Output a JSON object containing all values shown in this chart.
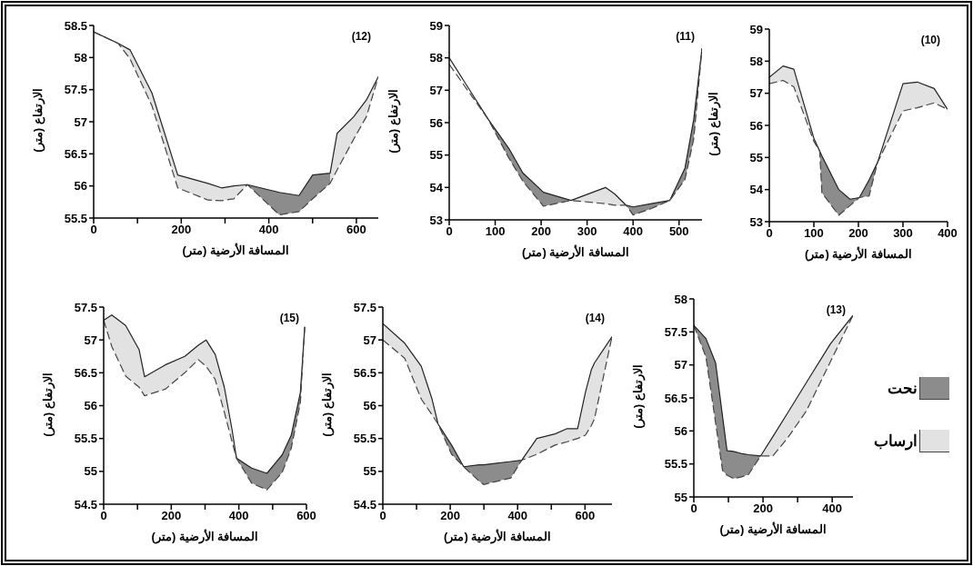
{
  "chart_data": [
    {
      "type": "line",
      "title": "(12)",
      "xlabel": "المسافة الأرضية (متر)",
      "ylabel": "الارتفاع (متر)",
      "marker": "none",
      "xlim": [
        0,
        650
      ],
      "xticks": [
        0,
        {
          "value": 100,
          "label": null
        },
        200,
        {
          "value": 300,
          "label": null
        },
        400,
        {
          "value": 500,
          "label": null
        },
        600
      ],
      "ylim": [
        55.5,
        58.5
      ],
      "yticks": [
        55.5,
        56,
        56.5,
        57,
        57.5,
        58,
        58.5
      ],
      "x": [
        0,
        56,
        83,
        133,
        192,
        261,
        292,
        320,
        351,
        424,
        469,
        500,
        540,
        556,
        594,
        623,
        650
      ],
      "series": [
        {
          "type": "line",
          "color": "#222222",
          "line_style": "solid",
          "values": [
            58.4,
            58.22,
            58.12,
            57.45,
            56.17,
            56.04,
            55.97,
            56.0,
            56.02,
            55.9,
            55.85,
            56.17,
            56.2,
            56.82,
            57.08,
            57.34,
            57.7
          ]
        },
        {
          "type": "line",
          "color": "#444444",
          "line_style": "dashed",
          "values": [
            58.4,
            58.22,
            57.98,
            57.25,
            55.97,
            55.78,
            55.77,
            55.8,
            56.02,
            55.55,
            55.6,
            55.8,
            56.04,
            56.25,
            56.73,
            57.08,
            57.7
          ]
        },
        {
          "type": "area",
          "color": "#8c8c8c",
          "values": [
            null,
            null,
            null,
            null,
            null,
            null,
            null,
            null,
            56.02,
            55.9,
            55.85,
            56.17,
            56.2,
            null,
            null,
            null,
            null
          ]
        },
        {
          "type": "area",
          "color": "#e2e2e2",
          "values": [
            58.4,
            58.22,
            58.12,
            57.45,
            56.17,
            56.04,
            55.97,
            56.0,
            56.02,
            null,
            null,
            null,
            56.2,
            56.82,
            57.08,
            57.34,
            57.7
          ]
        }
      ]
    },
    {
      "type": "line",
      "title": "(11)",
      "xlabel": "المسافة الأرضية (متر)",
      "ylabel": "الارتفاع (متر)",
      "marker": "none",
      "xlim": [
        0,
        550
      ],
      "xticks": [
        0,
        100,
        200,
        300,
        400,
        500
      ],
      "ylim": [
        53,
        59
      ],
      "yticks": [
        53,
        54,
        55,
        56,
        57,
        58,
        59
      ],
      "x": [
        0,
        85,
        130,
        160,
        205,
        265,
        340,
        360,
        385,
        400,
        440,
        480,
        513,
        532,
        550
      ],
      "series": [
        {
          "type": "line",
          "color": "#222222",
          "line_style": "solid",
          "values": [
            58.0,
            56.1,
            55.2,
            54.45,
            53.85,
            53.6,
            54.0,
            53.8,
            53.45,
            53.4,
            53.5,
            53.6,
            54.6,
            56.1,
            58.3
          ]
        },
        {
          "type": "line",
          "color": "#444444",
          "line_style": "dashed",
          "values": [
            57.8,
            56.1,
            54.9,
            54.2,
            53.42,
            53.6,
            53.5,
            53.45,
            53.45,
            53.15,
            53.35,
            53.6,
            54.25,
            55.5,
            58.3
          ]
        },
        {
          "type": "area",
          "color": "#8c8c8c",
          "values": [
            null,
            56.1,
            55.2,
            54.45,
            53.85,
            53.6,
            null,
            null,
            53.45,
            53.4,
            53.5,
            53.6,
            54.6,
            56.1,
            58.3
          ]
        },
        {
          "type": "area",
          "color": "#e2e2e2",
          "values": [
            null,
            null,
            null,
            null,
            null,
            53.6,
            54.0,
            53.8,
            53.45,
            null,
            null,
            null,
            null,
            null,
            null
          ]
        }
      ]
    },
    {
      "type": "line",
      "title": "(10)",
      "xlabel": "المسافة الأرضية (متر)",
      "ylabel": "الارتفاع (متر)",
      "marker": "none",
      "xlim": [
        0,
        400
      ],
      "xticks": [
        0,
        100,
        200,
        300,
        400
      ],
      "ylim": [
        53,
        59
      ],
      "yticks": [
        53,
        54,
        55,
        56,
        57,
        58,
        59
      ],
      "x": [
        0,
        31,
        55,
        100,
        113,
        118,
        156,
        181,
        202,
        224,
        243,
        300,
        332,
        370,
        400
      ],
      "series": [
        {
          "type": "line",
          "color": "#222222",
          "line_style": "solid",
          "values": [
            57.5,
            57.85,
            57.75,
            55.6,
            55.2,
            55.05,
            54.0,
            53.7,
            53.75,
            54.3,
            54.85,
            57.3,
            57.35,
            57.15,
            56.5
          ]
        },
        {
          "type": "line",
          "color": "#444444",
          "line_style": "dashed",
          "values": [
            57.3,
            57.4,
            57.2,
            55.5,
            55.2,
            53.9,
            53.2,
            53.5,
            53.75,
            53.8,
            54.85,
            56.45,
            56.55,
            56.7,
            56.5
          ]
        },
        {
          "type": "area",
          "color": "#8c8c8c",
          "values": [
            null,
            null,
            null,
            null,
            55.2,
            55.05,
            54.0,
            53.7,
            53.75,
            54.3,
            54.85,
            null,
            null,
            null,
            null
          ]
        },
        {
          "type": "area",
          "color": "#e2e2e2",
          "values": [
            57.5,
            57.85,
            57.75,
            55.6,
            55.2,
            null,
            null,
            null,
            null,
            null,
            54.85,
            57.3,
            57.35,
            57.15,
            56.5
          ]
        }
      ]
    },
    {
      "type": "line",
      "title": "(15)",
      "xlabel": "المسافة الأرضية (متر)",
      "ylabel": "الارتفاع (متر)",
      "marker": "none",
      "xlim": [
        0,
        600
      ],
      "xticks": [
        0,
        {
          "value": 100,
          "label": null
        },
        200,
        {
          "value": 300,
          "label": null
        },
        400,
        {
          "value": 500,
          "label": null
        },
        600
      ],
      "ylim": [
        54.5,
        57.5
      ],
      "yticks": [
        54.5,
        55,
        55.5,
        56,
        56.5,
        57,
        57.5
      ],
      "x": [
        0,
        24,
        65,
        105,
        121,
        182,
        240,
        280,
        303,
        330,
        357,
        380,
        393,
        438,
        483,
        528,
        555,
        582,
        595
      ],
      "series": [
        {
          "type": "line",
          "color": "#222222",
          "line_style": "solid",
          "values": [
            57.3,
            57.38,
            57.22,
            56.85,
            56.44,
            56.62,
            56.75,
            56.92,
            57.0,
            56.78,
            56.28,
            55.63,
            55.2,
            55.05,
            54.97,
            55.25,
            55.55,
            56.2,
            57.2
          ]
        },
        {
          "type": "line",
          "color": "#444444",
          "line_style": "dashed",
          "values": [
            57.3,
            56.9,
            56.45,
            56.28,
            56.15,
            56.25,
            56.5,
            56.7,
            56.6,
            56.4,
            55.9,
            55.45,
            55.2,
            54.82,
            54.72,
            54.98,
            55.35,
            56.05,
            57.2
          ]
        },
        {
          "type": "area",
          "color": "#8c8c8c",
          "values": [
            null,
            null,
            null,
            null,
            null,
            null,
            null,
            null,
            null,
            null,
            null,
            null,
            55.2,
            55.05,
            54.97,
            55.25,
            55.55,
            56.2,
            57.2
          ]
        },
        {
          "type": "area",
          "color": "#e2e2e2",
          "values": [
            57.3,
            57.38,
            57.22,
            56.85,
            56.44,
            56.62,
            56.75,
            56.92,
            57.0,
            56.78,
            56.28,
            55.63,
            55.2,
            null,
            null,
            null,
            null,
            null,
            null
          ]
        }
      ]
    },
    {
      "type": "line",
      "title": "(14)",
      "xlabel": "المسافة الأرضية (متر)",
      "ylabel": "الارتفاع (متر)",
      "marker": "none",
      "xlim": [
        0,
        680
      ],
      "xticks": [
        0,
        {
          "value": 100,
          "label": null
        },
        200,
        {
          "value": 300,
          "label": null
        },
        400,
        {
          "value": 500,
          "label": null
        },
        600
      ],
      "ylim": [
        54.5,
        57.5
      ],
      "yticks": [
        54.5,
        55,
        55.5,
        56,
        56.5,
        57,
        57.5
      ],
      "x": [
        0,
        65,
        114,
        146,
        164,
        204,
        240,
        286,
        299,
        380,
        412,
        457,
        511,
        547,
        578,
        601,
        619,
        628,
        680
      ],
      "series": [
        {
          "type": "line",
          "color": "#222222",
          "line_style": "solid",
          "values": [
            57.25,
            56.95,
            56.6,
            56.1,
            55.72,
            55.4,
            55.07,
            55.1,
            55.1,
            55.15,
            55.17,
            55.5,
            55.57,
            55.65,
            55.65,
            56.2,
            56.55,
            56.65,
            57.05
          ]
        },
        {
          "type": "line",
          "color": "#444444",
          "line_style": "dashed",
          "values": [
            57.0,
            56.72,
            56.1,
            55.86,
            55.72,
            55.26,
            55.07,
            54.85,
            54.8,
            54.9,
            55.17,
            55.26,
            55.4,
            55.45,
            55.5,
            55.55,
            55.7,
            55.8,
            57.05
          ]
        },
        {
          "type": "area",
          "color": "#8c8c8c",
          "values": [
            null,
            null,
            null,
            null,
            55.72,
            55.4,
            55.07,
            55.1,
            55.1,
            55.15,
            55.17,
            null,
            null,
            null,
            null,
            null,
            null,
            null,
            null
          ]
        },
        {
          "type": "area",
          "color": "#e2e2e2",
          "values": [
            57.25,
            56.95,
            56.6,
            56.1,
            55.72,
            null,
            null,
            null,
            null,
            null,
            55.17,
            55.5,
            55.57,
            55.65,
            55.65,
            56.2,
            56.55,
            56.65,
            57.05
          ]
        }
      ]
    },
    {
      "type": "line",
      "title": "(13)",
      "xlabel": "المسافة الأرضية (متر)",
      "ylabel": "الارتفاع (متر)",
      "marker": "none",
      "xlim": [
        0,
        460
      ],
      "xticks": [
        0,
        {
          "value": 100,
          "label": null
        },
        200,
        {
          "value": 300,
          "label": null
        },
        400
      ],
      "ylim": [
        55,
        58
      ],
      "yticks": [
        55,
        55.5,
        56,
        56.5,
        57,
        57.5,
        58
      ],
      "x": [
        0,
        35,
        63,
        83,
        96,
        114,
        136,
        158,
        193,
        228,
        272,
        325,
        395,
        460
      ],
      "series": [
        {
          "type": "line",
          "color": "#222222",
          "line_style": "solid",
          "values": [
            57.6,
            57.4,
            57.03,
            56.22,
            55.7,
            55.69,
            55.66,
            55.64,
            55.62,
            55.91,
            56.28,
            56.73,
            57.32,
            57.75
          ]
        },
        {
          "type": "line",
          "color": "#444444",
          "line_style": "dashed",
          "values": [
            57.6,
            57.12,
            56.12,
            55.4,
            55.33,
            55.28,
            55.3,
            55.34,
            55.62,
            55.62,
            55.9,
            56.3,
            57.05,
            57.75
          ]
        },
        {
          "type": "area",
          "color": "#8c8c8c",
          "values": [
            57.6,
            57.4,
            57.03,
            56.22,
            55.7,
            55.69,
            55.66,
            55.64,
            55.62,
            null,
            null,
            null,
            null,
            null
          ]
        },
        {
          "type": "area",
          "color": "#e2e2e2",
          "values": [
            null,
            null,
            null,
            null,
            null,
            null,
            null,
            null,
            55.62,
            55.91,
            56.28,
            56.73,
            57.32,
            57.75
          ]
        }
      ]
    },
    {
      "type": "other",
      "annotations": [
        "نحت",
        "ارساب"
      ]
    }
  ]
}
